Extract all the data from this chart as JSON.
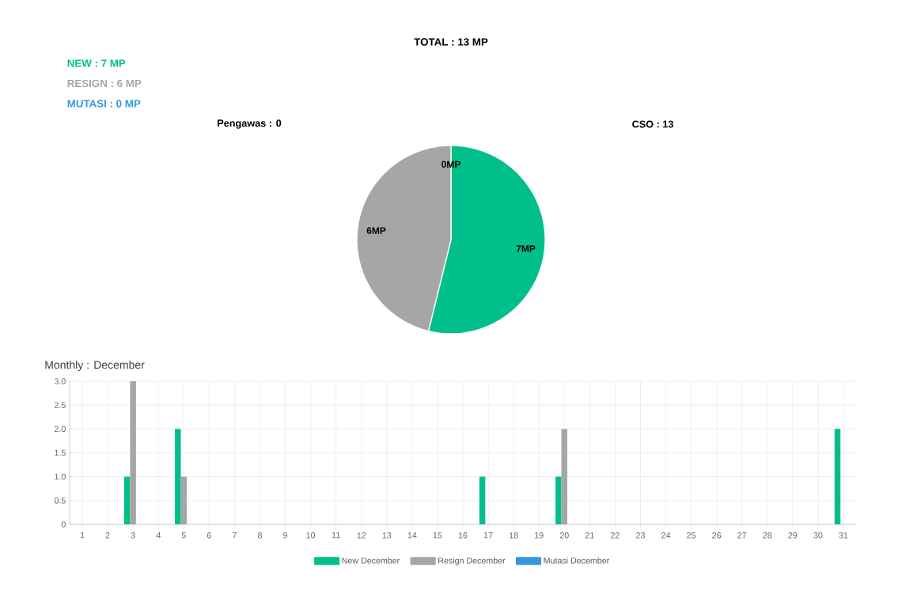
{
  "chart_data": [
    {
      "type": "pie",
      "title": "TOTAL : 13 MP",
      "categories": [
        null,
        null,
        null
      ],
      "values": [
        7,
        6,
        0
      ],
      "colors": [
        "#00bf8a",
        "#a6a6a6",
        "#3399dd"
      ],
      "value_labels": [
        "7MP",
        "6MP",
        "0MP"
      ],
      "annotations": [
        "NEW : 7 MP",
        "RESIGN : 6 MP",
        "MUTASI : 0 MP",
        "Pengawas : 0",
        "CSO : 13"
      ]
    },
    {
      "type": "bar",
      "title": "Monthly : December",
      "categories": [
        "1",
        "2",
        "3",
        "4",
        "5",
        "6",
        "7",
        "8",
        "9",
        "10",
        "11",
        "12",
        "13",
        "14",
        "15",
        "16",
        "17",
        "18",
        "19",
        "20",
        "21",
        "22",
        "23",
        "24",
        "25",
        "26",
        "27",
        "28",
        "29",
        "30",
        "31"
      ],
      "series": [
        {
          "name": "New December",
          "color": "#00bf8a",
          "values": [
            0,
            0,
            1,
            0,
            2,
            0,
            0,
            0,
            0,
            0,
            0,
            0,
            0,
            0,
            0,
            0,
            1,
            0,
            0,
            1,
            0,
            0,
            0,
            0,
            0,
            0,
            0,
            0,
            0,
            0,
            2
          ]
        },
        {
          "name": "Resign December",
          "color": "#a6a6a6",
          "values": [
            0,
            0,
            3,
            0,
            1,
            0,
            0,
            0,
            0,
            0,
            0,
            0,
            0,
            0,
            0,
            0,
            0,
            0,
            0,
            2,
            0,
            0,
            0,
            0,
            0,
            0,
            0,
            0,
            0,
            0,
            0
          ]
        },
        {
          "name": "Mutasi December",
          "color": "#3399dd",
          "values": [
            0,
            0,
            0,
            0,
            0,
            0,
            0,
            0,
            0,
            0,
            0,
            0,
            0,
            0,
            0,
            0,
            0,
            0,
            0,
            0,
            0,
            0,
            0,
            0,
            0,
            0,
            0,
            0,
            0,
            0,
            0
          ]
        }
      ],
      "ylim": [
        0,
        3
      ],
      "yticks": [
        0,
        0.5,
        {
          "value": 1,
          "label": "1.0"
        },
        1.5,
        {
          "value": 2,
          "label": "2.0"
        },
        2.5,
        {
          "value": 3,
          "label": "3.0"
        }
      ],
      "grid": true,
      "legend": "bottom"
    }
  ]
}
